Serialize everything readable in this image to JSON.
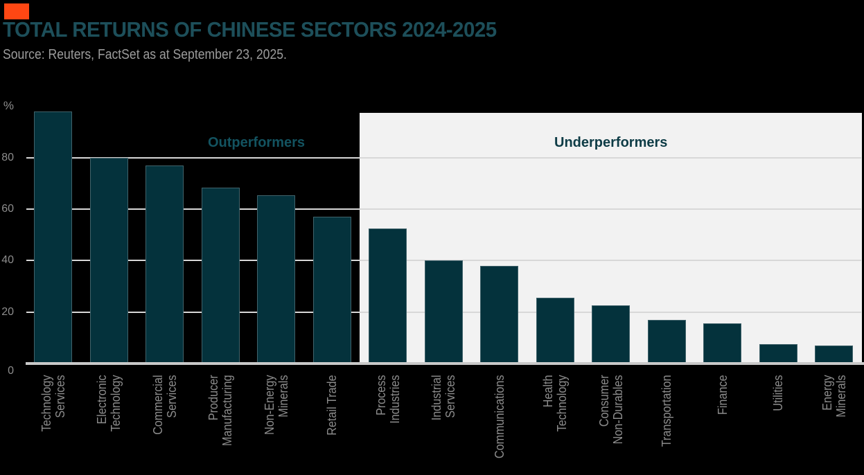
{
  "header": {
    "title": "TOTAL RETURNS OF CHINESE SECTORS 2024-2025",
    "source": "Source: Reuters, FactSet as at September 23, 2025."
  },
  "accent_color": "#ff4713",
  "chart_data": {
    "type": "bar",
    "title": "TOTAL RETURNS OF CHINESE SECTORS 2024-2025",
    "xlabel": "",
    "ylabel": "%",
    "yticks": [
      0,
      20,
      40,
      60,
      80
    ],
    "ylim": [
      0,
      100
    ],
    "grid": "horizontal",
    "bar_color": "#04323c",
    "gridline_color": "#d8d8d8",
    "axis_text_color": "#8d8d8d",
    "categories": [
      "Technology Services",
      "Electronic Technology",
      "Commercial Services",
      "Producer Manufacturing",
      "Non-Energy Minerals",
      "Retail Trade",
      "Process Industries",
      "Industrial Services",
      "Communications",
      "Health Technology",
      "Consumer Non-Durables",
      "Transportation",
      "Finance",
      "Utilities",
      "Energy Minerals"
    ],
    "category_label_lines": [
      [
        "Technology",
        "Services"
      ],
      [
        "Electronic",
        "Technology"
      ],
      [
        "Commercial",
        "Services"
      ],
      [
        "Producer",
        "Manufacturing"
      ],
      [
        "Non-Energy",
        "Minerals"
      ],
      [
        "Retail Trade"
      ],
      [
        "Process",
        "Industries"
      ],
      [
        "Industrial",
        "Services"
      ],
      [
        "Communications"
      ],
      [
        "Health",
        "Technology"
      ],
      [
        "Consumer",
        "Non-Durables"
      ],
      [
        "Transportation"
      ],
      [
        "Finance"
      ],
      [
        "Utilities"
      ],
      [
        "Energy",
        "Minerals"
      ]
    ],
    "values": [
      98,
      80,
      77,
      68.5,
      65.5,
      57,
      52.5,
      40,
      38,
      25.5,
      22.5,
      17,
      15.5,
      7.5,
      7
    ],
    "regions": [
      {
        "label": "Outperformers",
        "start_index": 0,
        "end_index": 5,
        "background": "#000000",
        "text_color": "#135360"
      },
      {
        "label": "Underperformers",
        "start_index": 6,
        "end_index": 14,
        "background": "#f2f2f2",
        "text_color": "#0e3c46"
      }
    ]
  }
}
